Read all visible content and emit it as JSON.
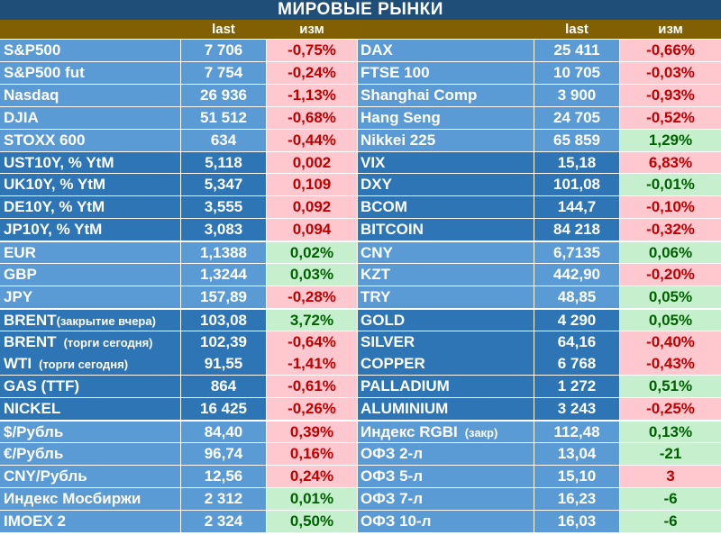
{
  "title": "МИРОВЫЕ РЫНКИ",
  "headers": {
    "last": "last",
    "change": "изм"
  },
  "colors": {
    "title_bg": "#1f4e79",
    "header_bg": "#806000",
    "light_group_bg": "#5b9bd5",
    "dark_group_bg": "#2e75b6",
    "negative_bg": "#ffc7ce",
    "negative_text": "#c00000",
    "positive_bg": "#c6efce",
    "positive_text": "#006100"
  },
  "groups": [
    {
      "tone": "light",
      "rows": [
        {
          "left": {
            "name": "S&P500",
            "last": "7 706",
            "change": "-0,75%",
            "dir": "neg"
          },
          "right": {
            "name": "DAX",
            "last": "25 411",
            "change": "-0,66%",
            "dir": "neg"
          }
        },
        {
          "left": {
            "name": "S&P500 fut",
            "last": "7 754",
            "change": "-0,24%",
            "dir": "neg"
          },
          "right": {
            "name": "FTSE 100",
            "last": "10 705",
            "change": "-0,03%",
            "dir": "neg"
          }
        },
        {
          "left": {
            "name": "Nasdaq",
            "last": "26 936",
            "change": "-1,13%",
            "dir": "neg"
          },
          "right": {
            "name": "Shanghai Comp",
            "last": "3 900",
            "change": "-0,93%",
            "dir": "neg"
          }
        },
        {
          "left": {
            "name": "DJIA",
            "last": "51 512",
            "change": "-0,68%",
            "dir": "neg"
          },
          "right": {
            "name": "Hang Seng",
            "last": "24 705",
            "change": "-0,52%",
            "dir": "neg"
          }
        },
        {
          "left": {
            "name": "STOXX 600",
            "last": "634",
            "change": "-0,44%",
            "dir": "neg"
          },
          "right": {
            "name": "Nikkei 225",
            "last": "65 859",
            "change": "1,29%",
            "dir": "pos"
          }
        }
      ]
    },
    {
      "tone": "dark",
      "rows": [
        {
          "left": {
            "name": "UST10Y, % YtM",
            "last": "5,118",
            "change": "0,002",
            "dir": "neg"
          },
          "right": {
            "name": "VIX",
            "last": "15,18",
            "change": "6,83%",
            "dir": "neg"
          }
        },
        {
          "left": {
            "name": "UK10Y, % YtM",
            "last": "5,347",
            "change": "0,109",
            "dir": "neg"
          },
          "right": {
            "name": "DXY",
            "last": "101,08",
            "change": "-0,01%",
            "dir": "pos"
          }
        },
        {
          "left": {
            "name": "DE10Y, % YtM",
            "last": "3,555",
            "change": "0,092",
            "dir": "neg"
          },
          "right": {
            "name": "BCOM",
            "last": "144,7",
            "change": "-0,10%",
            "dir": "neg"
          }
        },
        {
          "left": {
            "name": "JP10Y, % YtM",
            "last": "3,083",
            "change": "0,094",
            "dir": "neg"
          },
          "right": {
            "name": "BITCOIN",
            "last": "84 218",
            "change": "-0,32%",
            "dir": "neg"
          }
        }
      ]
    },
    {
      "tone": "light",
      "rows": [
        {
          "left": {
            "name": "EUR",
            "last": "1,1388",
            "change": "0,02%",
            "dir": "pos"
          },
          "right": {
            "name": "CNY",
            "last": "6,7135",
            "change": "0,06%",
            "dir": "pos"
          }
        },
        {
          "left": {
            "name": "GBP",
            "last": "1,3244",
            "change": "0,03%",
            "dir": "pos"
          },
          "right": {
            "name": "KZT",
            "last": "442,90",
            "change": "-0,20%",
            "dir": "neg"
          }
        },
        {
          "left": {
            "name": "JPY",
            "last": "157,89",
            "change": "-0,28%",
            "dir": "neg"
          },
          "right": {
            "name": "TRY",
            "last": "48,85",
            "change": "0,05%",
            "dir": "pos"
          }
        }
      ]
    },
    {
      "tone": "dark",
      "rows": [
        {
          "left": {
            "name": "BRENT",
            "note": "(закрытие вчера)",
            "last": "103,08",
            "change": "3,72%",
            "dir": "pos"
          },
          "right": {
            "name": "GOLD",
            "last": "4 290",
            "change": "0,05%",
            "dir": "pos"
          }
        },
        {
          "left": {
            "name": "BRENT",
            "note": "(торги сегодня)",
            "last": "102,39",
            "change": "-0,64%",
            "dir": "neg"
          },
          "right": {
            "name": "SILVER",
            "last": "64,16",
            "change": "-0,40%",
            "dir": "neg"
          }
        },
        {
          "left": {
            "name": "WTI",
            "note": "(торги сегодня)",
            "last": "91,55",
            "change": "-1,41%",
            "dir": "neg"
          },
          "right": {
            "name": "COPPER",
            "last": "6 768",
            "change": "-0,43%",
            "dir": "neg"
          }
        },
        {
          "left": {
            "name": "GAS (TTF)",
            "last": "864",
            "change": "-0,61%",
            "dir": "neg"
          },
          "right": {
            "name": "PALLADIUM",
            "last": "1 272",
            "change": "0,51%",
            "dir": "pos"
          }
        },
        {
          "left": {
            "name": "NICKEL",
            "last": "16 425",
            "change": "-0,26%",
            "dir": "neg"
          },
          "right": {
            "name": "ALUMINIUM",
            "last": "3 243",
            "change": "-0,25%",
            "dir": "neg"
          }
        }
      ]
    },
    {
      "tone": "light",
      "rows": [
        {
          "left": {
            "name": "$/Рубль",
            "last": "84,40",
            "change": "0,39%",
            "dir": "neg"
          },
          "right": {
            "name": "Индекс RGBI",
            "note": "(закр)",
            "last": "112,48",
            "change": "0,13%",
            "dir": "pos"
          }
        },
        {
          "left": {
            "name": "€/Рубль",
            "last": "96,74",
            "change": "0,16%",
            "dir": "neg"
          },
          "right": {
            "name": "ОФЗ 2-л",
            "last": "13,04",
            "change": "-21",
            "dir": "pos"
          }
        },
        {
          "left": {
            "name": "CNY/Рубль",
            "last": "12,56",
            "change": "0,24%",
            "dir": "neg"
          },
          "right": {
            "name": "ОФЗ 5-л",
            "last": "15,10",
            "change": "3",
            "dir": "neg"
          }
        },
        {
          "left": {
            "name": "Индекс Мосбиржи",
            "last": "2 312",
            "change": "0,01%",
            "dir": "pos"
          },
          "right": {
            "name": "ОФЗ 7-л",
            "last": "16,23",
            "change": "-6",
            "dir": "pos"
          }
        },
        {
          "left": {
            "name": "IMOEX 2",
            "last": "2 324",
            "change": "0,50%",
            "dir": "pos"
          },
          "right": {
            "name": "ОФЗ 10-л",
            "last": "16,03",
            "change": "-6",
            "dir": "pos"
          }
        }
      ]
    }
  ]
}
